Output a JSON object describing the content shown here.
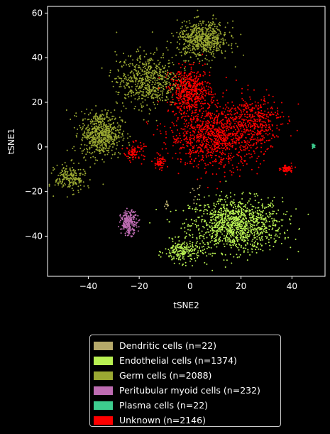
{
  "chart_data": {
    "type": "scatter",
    "xlabel": "tSNE2",
    "ylabel": "tSNE1",
    "xlim": [
      -56,
      53
    ],
    "ylim": [
      -58,
      63
    ],
    "xticks": [
      -40,
      -20,
      0,
      20,
      40
    ],
    "yticks": [
      -40,
      -20,
      0,
      20,
      40,
      60
    ],
    "xtick_labels": [
      "−40",
      "−20",
      "0",
      "20",
      "40"
    ],
    "ytick_labels": [
      "−40",
      "−20",
      "0",
      "20",
      "40",
      "60"
    ],
    "background": "#000000",
    "legend_position": "below",
    "series": [
      {
        "name": "Dendritic cells (n=22)",
        "color": "#b5a96a",
        "n": 22,
        "clusters": [
          {
            "cx": -9,
            "cy": -26,
            "sx": 0.5,
            "sy": 1.2,
            "frac": 0.5
          },
          {
            "cx": 2,
            "cy": -20,
            "sx": 1.5,
            "sy": 2,
            "frac": 0.5
          }
        ]
      },
      {
        "name": "Endothelial cells (n=1374)",
        "color": "#b8f052",
        "n": 1374,
        "clusters": [
          {
            "cx": 18,
            "cy": -35,
            "sx": 9,
            "sy": 6,
            "frac": 0.85
          },
          {
            "cx": -3,
            "cy": -47,
            "sx": 3.5,
            "sy": 2.5,
            "frac": 0.15
          }
        ]
      },
      {
        "name": "Germ cells (n=2088)",
        "color": "#9aa832",
        "n": 2088,
        "clusters": [
          {
            "cx": -35,
            "cy": 6,
            "sx": 4,
            "sy": 5,
            "frac": 0.3
          },
          {
            "cx": -17,
            "cy": 30,
            "sx": 6,
            "sy": 6,
            "frac": 0.3
          },
          {
            "cx": 5,
            "cy": 48,
            "sx": 5,
            "sy": 4,
            "frac": 0.3
          },
          {
            "cx": -47,
            "cy": -14,
            "sx": 3,
            "sy": 3,
            "frac": 0.1
          }
        ]
      },
      {
        "name": "Peritubular myoid cells (n=232)",
        "color": "#be6cb2",
        "n": 232,
        "clusters": [
          {
            "cx": -24,
            "cy": -34,
            "sx": 1.6,
            "sy": 2.6,
            "frac": 1.0
          }
        ]
      },
      {
        "name": "Plasma cells (n=22)",
        "color": "#3dcc8e",
        "n": 22,
        "clusters": [
          {
            "cx": 48.5,
            "cy": 0.5,
            "sx": 0.3,
            "sy": 0.5,
            "frac": 1.0
          }
        ]
      },
      {
        "name": "Unknown (n=2146)",
        "color": "#ff0000",
        "n": 2146,
        "clusters": [
          {
            "cx": 10,
            "cy": 5,
            "sx": 9,
            "sy": 7,
            "frac": 0.5
          },
          {
            "cx": 0,
            "cy": 25,
            "sx": 4,
            "sy": 5,
            "frac": 0.25
          },
          {
            "cx": 26,
            "cy": 12,
            "sx": 5,
            "sy": 6,
            "frac": 0.15
          },
          {
            "cx": -22,
            "cy": -2,
            "sx": 2,
            "sy": 2,
            "frac": 0.04
          },
          {
            "cx": 38,
            "cy": -10,
            "sx": 1.2,
            "sy": 1,
            "frac": 0.03
          },
          {
            "cx": -12,
            "cy": -7,
            "sx": 1,
            "sy": 1.5,
            "frac": 0.03
          }
        ]
      }
    ]
  }
}
